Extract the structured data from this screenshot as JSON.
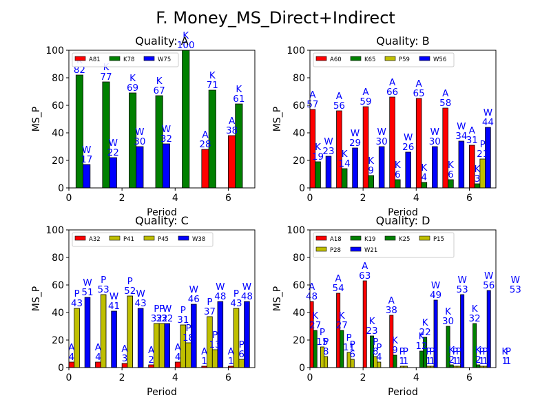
{
  "figure": {
    "title": "F. Money_MS_Direct+Indirect"
  },
  "chart_data": [
    {
      "type": "bar",
      "title": "Quality: A",
      "xlabel": "Period",
      "ylabel": "MS_P",
      "xlim": [
        0,
        7
      ],
      "ylim": [
        0,
        100
      ],
      "xticks": [
        0,
        2,
        4,
        6
      ],
      "yticks": [
        0,
        20,
        40,
        60,
        80,
        100
      ],
      "legend": {
        "placement": "top-left",
        "columns": 3
      },
      "series": [
        {
          "name": "A81",
          "color": "#ff0000",
          "letter": "A",
          "values": [
            0,
            0,
            0,
            0,
            0,
            28,
            38
          ]
        },
        {
          "name": "K78",
          "color": "#008000",
          "letter": "K",
          "values": [
            82,
            77,
            69,
            67,
            100,
            71,
            61
          ]
        },
        {
          "name": "W75",
          "color": "#0000ff",
          "letter": "W",
          "values": [
            17,
            22,
            30,
            32,
            0,
            0,
            0
          ]
        }
      ]
    },
    {
      "type": "bar",
      "title": "Quality: B",
      "xlabel": "Period",
      "ylabel": "MS_P",
      "xlim": [
        0,
        7
      ],
      "ylim": [
        0,
        100
      ],
      "xticks": [
        0,
        2,
        4,
        6
      ],
      "yticks": [
        0,
        20,
        40,
        60,
        80,
        100
      ],
      "legend": {
        "placement": "top-left",
        "columns": 4
      },
      "series": [
        {
          "name": "A60",
          "color": "#ff0000",
          "letter": "A",
          "values": [
            57,
            56,
            59,
            66,
            65,
            58,
            31
          ]
        },
        {
          "name": "K65",
          "color": "#008000",
          "letter": "K",
          "values": [
            19,
            14,
            9,
            6,
            4,
            6,
            3
          ]
        },
        {
          "name": "P59",
          "color": "#bfbf00",
          "letter": "P",
          "values": [
            0,
            0,
            0,
            0,
            0,
            0,
            21
          ]
        },
        {
          "name": "W56",
          "color": "#0000ff",
          "letter": "W",
          "values": [
            23,
            29,
            30,
            26,
            30,
            34,
            44
          ]
        }
      ]
    },
    {
      "type": "bar",
      "title": "Quality: C",
      "xlabel": "Period",
      "ylabel": "MS_P",
      "xlim": [
        0,
        7
      ],
      "ylim": [
        0,
        100
      ],
      "xticks": [
        0,
        2,
        4,
        6
      ],
      "yticks": [
        0,
        20,
        40,
        60,
        80,
        100
      ],
      "legend": {
        "placement": "top-left",
        "columns": 4
      },
      "series": [
        {
          "name": "A32",
          "color": "#ff0000",
          "letter": "A",
          "values": [
            4,
            4,
            3,
            2,
            4,
            1,
            1
          ]
        },
        {
          "name": "P41",
          "color": "#bfbf00",
          "letter": "P",
          "values": [
            43,
            53,
            52,
            32,
            31,
            37,
            43
          ]
        },
        {
          "name": "P45",
          "color": "#bfbf00",
          "letter": "P",
          "values": [
            0,
            0,
            0,
            32,
            18,
            13,
            6
          ]
        },
        {
          "name": "W38",
          "color": "#0000ff",
          "letter": "W",
          "values": [
            51,
            41,
            43,
            32,
            46,
            48,
            48
          ]
        }
      ]
    },
    {
      "type": "bar",
      "title": "Quality: D",
      "xlabel": "Period",
      "ylabel": "MS_P",
      "xlim": [
        0,
        7
      ],
      "ylim": [
        0,
        100
      ],
      "xticks": [
        0,
        2,
        4,
        6
      ],
      "yticks": [
        0,
        20,
        40,
        60,
        80,
        100
      ],
      "legend": {
        "placement": "top-left",
        "columns": 4
      },
      "series": [
        {
          "name": "A18",
          "color": "#ff0000",
          "letter": "A",
          "values": [
            48,
            54,
            63,
            38,
            0,
            0,
            0,
            0
          ]
        },
        {
          "name": "K19",
          "color": "#008000",
          "letter": "K",
          "values": [
            27,
            27,
            0,
            9,
            12,
            30,
            32,
            0
          ]
        },
        {
          "name": "K25",
          "color": "#008000",
          "letter": "K",
          "values": [
            0,
            0,
            23,
            0,
            22,
            2,
            2,
            1
          ]
        },
        {
          "name": "P15",
          "color": "#bfbf00",
          "letter": "P",
          "values": [
            15,
            11,
            8,
            1,
            1,
            1,
            1,
            1
          ]
        },
        {
          "name": "P28",
          "color": "#bfbf00",
          "letter": "P",
          "values": [
            8,
            6,
            4,
            1,
            1,
            1,
            1,
            0
          ]
        },
        {
          "name": "W21",
          "color": "#0000ff",
          "letter": "W",
          "values": [
            0,
            0,
            0,
            0,
            49,
            53,
            56,
            53
          ]
        }
      ]
    }
  ]
}
